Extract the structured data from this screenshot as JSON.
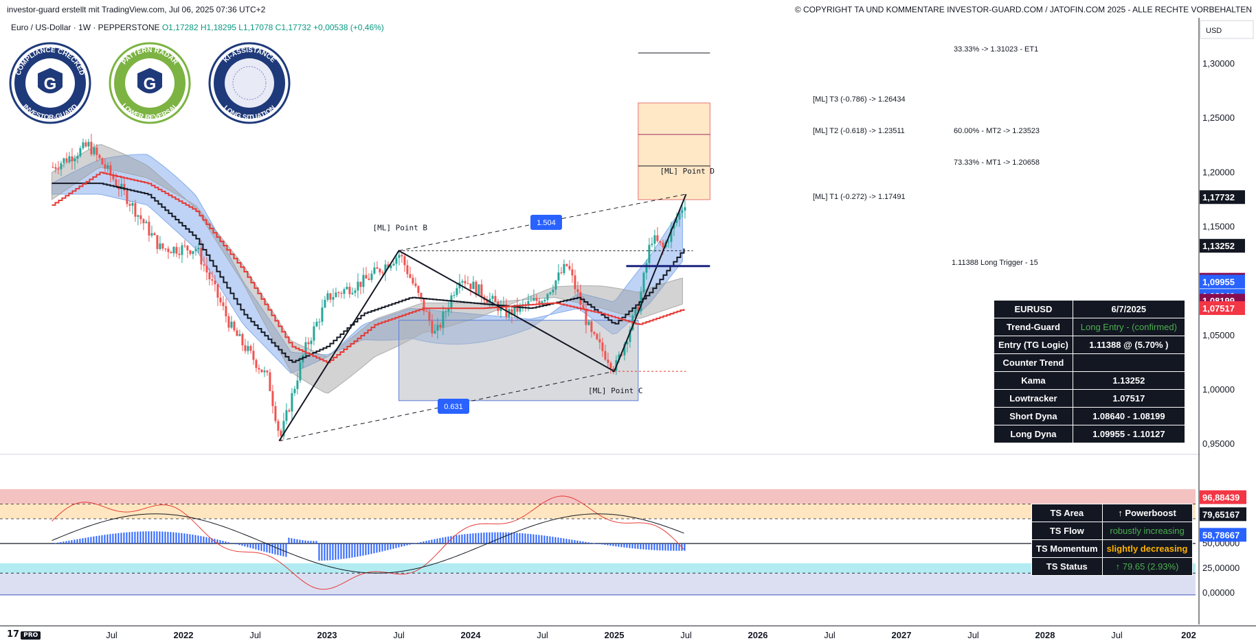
{
  "header": {
    "left": "investor-guard erstellt mit TradingView.com, Jul 06, 2025 07:36 UTC+2",
    "right": "© COPYRIGHT TA UND KOMMENTARE INVESTOR-GUARD.COM / JATOFIN.COM 2025 - ALLE RECHTE VORBEHALTEN"
  },
  "legend": {
    "symbol": "Euro / US-Dollar · 1W · PEPPERSTONE",
    "ohlc": "O1,17282  H1,18295  L1,17078  C1,17732",
    "change": "+0,00538 (+0,46%)"
  },
  "badges": [
    {
      "top": "COMPLIANCE CHECKED",
      "bottom": "INVESTOR-GUARD",
      "color": "#1f3a7a"
    },
    {
      "top": "PATTERN RADAR",
      "bottom": "LOWER REVERSAL",
      "color": "#7cb342"
    },
    {
      "top": "KI-ASSISTANCE",
      "bottom": "LONG SITUATION",
      "color": "#1f3a7a"
    }
  ],
  "currency": "USD",
  "colors": {
    "bull": "#26a69a",
    "bear": "#ef5350",
    "kama": "#131722",
    "low": "#e53935",
    "blueCloud": "#6f9ee8",
    "grayCloud": "#9e9e9e",
    "rsi": "#e53935",
    "hist": "#2962ff",
    "axisBg": "#ffffff"
  },
  "chart_data": [
    {
      "type": "line",
      "price_axis": {
        "ylim": [
          0.925,
          1.335
        ],
        "ticks": [
          "0,95000",
          "1,00000",
          "1,05000",
          "1,10000",
          "1,15000",
          "1,20000",
          "1,25000",
          "1,30000"
        ],
        "tick_values": [
          0.95,
          1.0,
          1.05,
          1.1,
          1.15,
          1.2,
          1.25,
          1.3
        ]
      },
      "time_axis": {
        "ticks": [
          "Jul",
          "2022",
          "Jul",
          "2023",
          "Jul",
          "2024",
          "Jul",
          "2025",
          "Jul",
          "2026",
          "Jul",
          "2027",
          "Jul",
          "2028",
          "Jul",
          "202"
        ],
        "tick_dates": [
          "2021-07",
          "2022-01",
          "2022-07",
          "2023-01",
          "2023-07",
          "2024-01",
          "2024-07",
          "2025-01",
          "2025-07",
          "2026-01",
          "2026-07",
          "2027-01",
          "2027-07",
          "2028-01",
          "2028-07",
          "2029-01"
        ]
      },
      "price_path": [
        [
          "2021-02",
          1.205
        ],
        [
          "2021-05",
          1.225
        ],
        [
          "2021-08",
          1.18
        ],
        [
          "2021-11",
          1.13
        ],
        [
          "2022-02",
          1.13
        ],
        [
          "2022-05",
          1.055
        ],
        [
          "2022-08",
          1.01
        ],
        [
          "2022-09",
          0.955
        ],
        [
          "2022-11",
          1.035
        ],
        [
          "2023-01",
          1.085
        ],
        [
          "2023-04",
          1.1
        ],
        [
          "2023-07",
          1.125
        ],
        [
          "2023-10",
          1.05
        ],
        [
          "2023-12",
          1.105
        ],
        [
          "2024-04",
          1.07
        ],
        [
          "2024-07",
          1.085
        ],
        [
          "2024-09",
          1.115
        ],
        [
          "2024-11",
          1.05
        ],
        [
          "2025-01",
          1.02
        ],
        [
          "2025-03",
          1.08
        ],
        [
          "2025-04",
          1.14
        ],
        [
          "2025-05",
          1.13
        ],
        [
          "2025-07",
          1.177
        ]
      ],
      "kama_path": [
        [
          "2021-02",
          1.19
        ],
        [
          "2021-06",
          1.19
        ],
        [
          "2021-10",
          1.18
        ],
        [
          "2022-02",
          1.14
        ],
        [
          "2022-06",
          1.07
        ],
        [
          "2022-10",
          1.025
        ],
        [
          "2023-01",
          1.04
        ],
        [
          "2023-04",
          1.07
        ],
        [
          "2023-08",
          1.085
        ],
        [
          "2024-01",
          1.08
        ],
        [
          "2024-06",
          1.075
        ],
        [
          "2024-10",
          1.085
        ],
        [
          "2025-01",
          1.06
        ],
        [
          "2025-04",
          1.09
        ],
        [
          "2025-07",
          1.1325
        ]
      ],
      "lowtracker_path": [
        [
          "2021-02",
          1.17
        ],
        [
          "2021-06",
          1.2
        ],
        [
          "2021-10",
          1.19
        ],
        [
          "2022-02",
          1.165
        ],
        [
          "2022-06",
          1.11
        ],
        [
          "2022-10",
          1.04
        ],
        [
          "2023-01",
          1.025
        ],
        [
          "2023-05",
          1.06
        ],
        [
          "2023-09",
          1.075
        ],
        [
          "2024-02",
          1.075
        ],
        [
          "2024-08",
          1.08
        ],
        [
          "2024-12",
          1.07
        ],
        [
          "2025-03",
          1.06
        ],
        [
          "2025-07",
          1.075
        ]
      ],
      "harmonic_points": {
        "X": [
          "2022-09",
          0.953
        ],
        "B": [
          "2023-07",
          1.128
        ],
        "C": [
          "2025-01",
          1.017
        ],
        "D": [
          "2025-07",
          1.18
        ]
      },
      "harmonic_labels": {
        "B": "[ML]  Point  B",
        "C": "[ML]  Point  C",
        "D": "[ML]  Point  D",
        "ratio1": "1.504",
        "ratio2": "0.631"
      },
      "levels": [
        {
          "label": "33.33% -> 1.31023 - ET1",
          "value": 1.31023
        },
        {
          "label": "[ML] T3 (-0.786) -> 1.26434",
          "value": 1.26434
        },
        {
          "label": "[ML] T2 (-0.618) -> 1.23511",
          "value": 1.23511
        },
        {
          "label": "60.00% - MT2  -> 1.23523",
          "value": 1.23523
        },
        {
          "label": "73.33% - MT1  -> 1.20658",
          "value": 1.20658
        },
        {
          "label": "[ML] T1 (-0.272) -> 1.17491",
          "value": 1.17491
        },
        {
          "label": "1.11388  Long Trigger - 15",
          "value": 1.11388
        }
      ],
      "price_tags": [
        {
          "value": "1,17732",
          "price": 1.17732,
          "bg": "#131722"
        },
        {
          "value": "1,13252",
          "price": 1.13252,
          "bg": "#131722"
        },
        {
          "value": "1,10127",
          "price": 1.10127,
          "bg": "#880e4f"
        },
        {
          "value": "1,09955",
          "price": 1.09955,
          "bg": "#2962ff"
        },
        {
          "value": "1,08640",
          "price": 1.0864,
          "bg": "#2962ff"
        },
        {
          "value": "1,08199",
          "price": 1.08199,
          "bg": "#880e4f"
        },
        {
          "value": "1,07517",
          "price": 1.07517,
          "bg": "#f23645"
        }
      ]
    },
    {
      "type": "line",
      "osc_axis": {
        "ylim": [
          -5,
          105
        ],
        "ticks": [
          "0,00000",
          "25,00000",
          "50,00000"
        ],
        "tick_values": [
          0,
          25,
          50
        ]
      },
      "tags": [
        {
          "value": "96,88439",
          "level": 96.88,
          "bg": "#f23645"
        },
        {
          "value": "79,65167",
          "level": 79.65,
          "bg": "#131722"
        },
        {
          "value": "58,78667",
          "level": 58.79,
          "bg": "#2962ff"
        }
      ]
    }
  ],
  "table_main": [
    [
      "EURUSD",
      "6/7/2025",
      ""
    ],
    [
      "Trend-Guard",
      "Long Entry - (confirmed)",
      "g"
    ],
    [
      "Entry (TG Logic)",
      "1.11388 @ (5.70% )",
      ""
    ],
    [
      "Counter Trend",
      "",
      ""
    ],
    [
      "Kama",
      "1.13252",
      ""
    ],
    [
      "Lowtracker",
      "1.07517",
      ""
    ],
    [
      "Short Dyna",
      "1.08640 - 1.08199",
      ""
    ],
    [
      "Long Dyna",
      "1.09955 - 1.10127",
      ""
    ]
  ],
  "table_ts": [
    [
      "TS Area",
      "↑ Powerboost",
      ""
    ],
    [
      "TS Flow",
      "robustly increasing",
      "g"
    ],
    [
      "TS Momentum",
      "slightly decreasing",
      "y"
    ],
    [
      "TS Status",
      "↑ 79.65 (2.93%)",
      "g"
    ]
  ],
  "logo": {
    "text": "17",
    "pro": "PRO"
  }
}
